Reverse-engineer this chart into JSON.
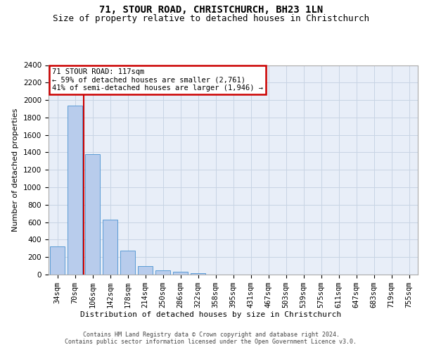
{
  "title1": "71, STOUR ROAD, CHRISTCHURCH, BH23 1LN",
  "title2": "Size of property relative to detached houses in Christchurch",
  "xlabel": "Distribution of detached houses by size in Christchurch",
  "ylabel": "Number of detached properties",
  "bar_labels": [
    "34sqm",
    "70sqm",
    "106sqm",
    "142sqm",
    "178sqm",
    "214sqm",
    "250sqm",
    "286sqm",
    "322sqm",
    "358sqm",
    "395sqm",
    "431sqm",
    "467sqm",
    "503sqm",
    "539sqm",
    "575sqm",
    "611sqm",
    "647sqm",
    "683sqm",
    "719sqm",
    "755sqm"
  ],
  "bar_values": [
    320,
    1940,
    1380,
    630,
    275,
    100,
    45,
    30,
    20,
    0,
    0,
    0,
    0,
    0,
    0,
    0,
    0,
    0,
    0,
    0,
    0
  ],
  "bar_color": "#b8ccec",
  "bar_edge_color": "#5b9bd5",
  "vline_color": "#cc0000",
  "vline_x": 1.5,
  "annotation_text": "71 STOUR ROAD: 117sqm\n← 59% of detached houses are smaller (2,761)\n41% of semi-detached houses are larger (1,946) →",
  "annotation_box_facecolor": "#ffffff",
  "annotation_box_edgecolor": "#cc0000",
  "ylim": [
    0,
    2400
  ],
  "yticks": [
    0,
    200,
    400,
    600,
    800,
    1000,
    1200,
    1400,
    1600,
    1800,
    2000,
    2200,
    2400
  ],
  "grid_color": "#c8d4e4",
  "background_color": "#e8eef8",
  "title_fontsize": 10,
  "subtitle_fontsize": 9,
  "axis_label_fontsize": 8,
  "tick_fontsize": 7.5,
  "footer_text": "Contains HM Land Registry data © Crown copyright and database right 2024.\nContains public sector information licensed under the Open Government Licence v3.0."
}
